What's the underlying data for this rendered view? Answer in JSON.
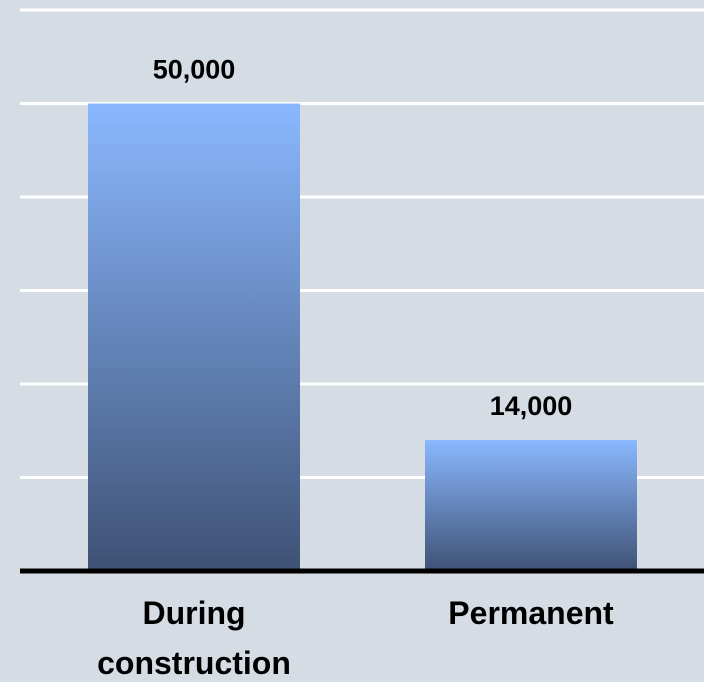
{
  "chart_data": {
    "type": "bar",
    "categories": [
      [
        "During",
        "construction"
      ],
      [
        "Permanent"
      ]
    ],
    "values": [
      50000,
      14000
    ],
    "data_labels": [
      "50,000",
      "14,000"
    ],
    "title": "",
    "xlabel": "",
    "ylabel": "",
    "ylim": [
      0,
      60000
    ],
    "grid": true,
    "legend": "none",
    "colors": {
      "background": "#d6dce4",
      "gridline": "#ffffff",
      "axis": "#000000",
      "bar_top": "#8ab8ff",
      "bar_bottom": "#3f5275"
    }
  }
}
